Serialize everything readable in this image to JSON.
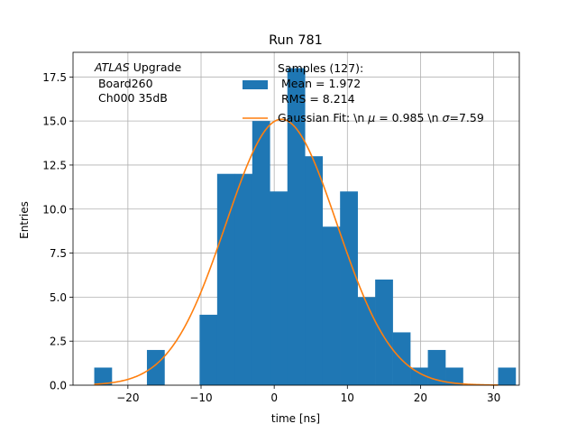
{
  "chart_data": {
    "type": "bar",
    "title": "Run 781",
    "xlabel": "time [ns]",
    "ylabel": "Entries",
    "xlim": [
      -27.5,
      33.5
    ],
    "ylim": [
      0,
      18.9
    ],
    "grid": true,
    "xticks": [
      -20,
      -10,
      0,
      10,
      20,
      30
    ],
    "xtick_labels": [
      "−20",
      "−10",
      "0",
      "10",
      "20",
      "30"
    ],
    "yticks": [
      0,
      2.5,
      5,
      7.5,
      10,
      12.5,
      15,
      17.5
    ],
    "ytick_labels": [
      "0.0",
      "2.5",
      "5.0",
      "7.5",
      "10.0",
      "12.5",
      "15.0",
      "17.5"
    ],
    "annotation": {
      "italic": "ATLAS",
      "rest": " Upgrade",
      "line2": " Board260",
      "line3": " Ch000 35dB"
    },
    "histogram": {
      "name": "Samples (127):",
      "color": "#1f77b4",
      "bin_width": 2.4,
      "bin_edges": [
        -24.6,
        -22.2,
        -19.8,
        -17.4,
        -15.0,
        -12.6,
        -10.2,
        -7.8,
        -5.4,
        -3.0,
        -0.6,
        1.8,
        4.2,
        6.6,
        9.0,
        11.4,
        13.8,
        16.2,
        18.6,
        21.0,
        23.4,
        25.8,
        28.2,
        30.6
      ],
      "counts": [
        1,
        0,
        0,
        2,
        0,
        0,
        4,
        12,
        12,
        15,
        11,
        18,
        13,
        9,
        11,
        5,
        6,
        3,
        1,
        2,
        1,
        0,
        0,
        1
      ]
    },
    "fit": {
      "name": "Gaussian Fit: \\n $\\mu$ = 0.985 \\n $\\sigma$=7.59",
      "color": "#ff7f0e",
      "mu": 0.985,
      "sigma": 7.59,
      "amplitude": 15.1,
      "x_range": [
        -24.6,
        30.6
      ]
    },
    "legend": {
      "placement": "upper-center",
      "hist_lines": [
        "Samples (127):",
        " Mean = 1.972",
        " RMS = 8.214"
      ],
      "fit_prefix": "Gaussian Fit: \\n ",
      "fit_mu": "μ",
      "fit_middle": " = 0.985 \\n ",
      "fit_sigma": "σ",
      "fit_suffix": "=7.59"
    }
  }
}
